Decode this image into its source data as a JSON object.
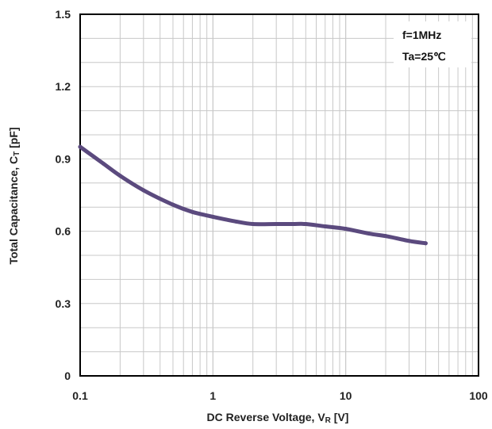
{
  "chart_data": {
    "type": "line",
    "xscale": "log",
    "xlim": [
      0.1,
      100
    ],
    "ylim": [
      0,
      1.5
    ],
    "xticks": [
      "0.1",
      "1",
      "10",
      "100"
    ],
    "yticks": [
      "0",
      "0.3",
      "0.6",
      "0.9",
      "1.2",
      "1.5"
    ],
    "xlabel": {
      "main": "DC Reverse Voltage,  V",
      "sub": "R",
      "unit": " [V]"
    },
    "ylabel": {
      "main": "Total Capacitance, C",
      "sub": "T",
      "unit": "  [pF]"
    },
    "grid": true,
    "legend_position": "top-right",
    "annotations": [
      "f=1MHz",
      "Ta=25℃"
    ],
    "line_color": "#5b4a7e",
    "series": [
      {
        "x": [
          0.1,
          0.15,
          0.2,
          0.3,
          0.5,
          0.7,
          1,
          1.5,
          2,
          3,
          4,
          5,
          7,
          10,
          15,
          20,
          30,
          40
        ],
        "values": [
          0.95,
          0.88,
          0.83,
          0.77,
          0.71,
          0.68,
          0.66,
          0.64,
          0.63,
          0.63,
          0.63,
          0.63,
          0.62,
          0.61,
          0.59,
          0.58,
          0.56,
          0.55
        ]
      }
    ]
  }
}
